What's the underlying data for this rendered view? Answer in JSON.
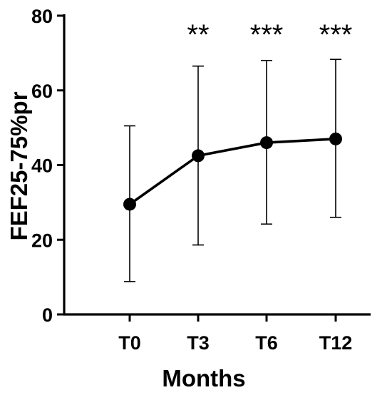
{
  "chart_data": {
    "type": "line",
    "title": "",
    "xlabel": "Months",
    "ylabel": "FEF25-75%pr",
    "categories": [
      "T0",
      "T3",
      "T6",
      "T12"
    ],
    "series": [
      {
        "values": [
          29.5,
          42.5,
          46.0,
          47.0
        ],
        "error_upper": [
          50.5,
          66.5,
          68.0,
          68.3
        ],
        "error_lower": [
          8.8,
          18.6,
          24.2,
          26.0
        ],
        "significance": [
          "",
          "**",
          "***",
          "***"
        ],
        "color": "#000000"
      }
    ],
    "ylim": [
      0,
      80
    ],
    "yticks": [
      0,
      20,
      40,
      60,
      80
    ],
    "ytick_labels": [
      "0",
      "20",
      "40",
      "60",
      "80"
    ],
    "grid": false,
    "legend": "none"
  }
}
